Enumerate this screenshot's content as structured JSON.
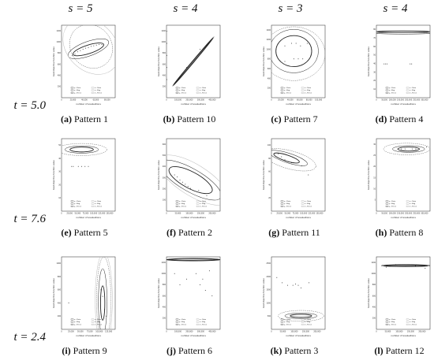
{
  "column_headers": [
    "s = 5",
    "s = 4",
    "s = 3",
    "s = 4"
  ],
  "row_headers": [
    "t = 5.0",
    "t = 7.6",
    "t = 2.4"
  ],
  "colors": {
    "ink": "#222222",
    "grid": "#999999",
    "dashed": "#555555",
    "light": "#bbbbbb"
  },
  "chart_data": [
    {
      "type": "scatter",
      "caption_letter": "(a)",
      "caption_text": "Pattern 1",
      "ylabel": "best objective function value",
      "xlabel": "number of evaluations",
      "xlim": [
        0,
        100000
      ],
      "ylim": [
        0,
        1200
      ],
      "xticks": [
        "0",
        "20,000",
        "40,000",
        "60,000",
        "80,000"
      ],
      "yticks": [
        "200",
        "400",
        "600",
        "800",
        "1000",
        "1200"
      ],
      "legend": [
        "μ - Data",
        "σ - Data",
        "μ - Bag",
        "σ - Bag",
        "μ - Fence",
        "σ - Fence"
      ],
      "points": [
        [
          20000,
          700
        ],
        [
          25000,
          720
        ],
        [
          30000,
          760
        ],
        [
          35000,
          780
        ],
        [
          40000,
          800
        ],
        [
          45000,
          820
        ],
        [
          50000,
          830
        ],
        [
          55000,
          850
        ],
        [
          60000,
          860
        ],
        [
          65000,
          870
        ],
        [
          70000,
          880
        ],
        [
          75000,
          880
        ]
      ],
      "ellipses": [
        {
          "cx": 50000,
          "cy": 800,
          "rx": 30000,
          "ry": 70,
          "rot": -18,
          "style": "bag"
        },
        {
          "cx": 50000,
          "cy": 810,
          "rx": 40000,
          "ry": 120,
          "rot": -20,
          "style": "fence"
        },
        {
          "cx": 55000,
          "cy": 850,
          "rx": 38000,
          "ry": 380,
          "rot": -40,
          "style": "dashed"
        },
        {
          "cx": 55000,
          "cy": 850,
          "rx": 45000,
          "ry": 520,
          "rot": -45,
          "style": "light"
        }
      ]
    },
    {
      "type": "scatter",
      "caption_letter": "(b)",
      "caption_text": "Pattern 10",
      "ylabel": "best objective function value",
      "xlabel": "number of evaluations",
      "xlim": [
        0,
        400000
      ],
      "ylim": [
        0,
        1200
      ],
      "xticks": [
        "0",
        "100,000",
        "200,000",
        "300,000",
        "400,000"
      ],
      "yticks": [
        "200",
        "400",
        "600",
        "800",
        "1000",
        "1200"
      ],
      "legend": [
        "μ - Data",
        "σ - Data",
        "μ - Bag",
        "σ - Bag",
        "μ - Fence",
        "σ - Fence"
      ],
      "points": [
        [
          2000,
          300
        ],
        [
          2000,
          500
        ],
        [
          2000,
          700
        ],
        [
          2000,
          900
        ],
        [
          2000,
          1100
        ],
        [
          150000,
          500
        ],
        [
          250000,
          800
        ]
      ],
      "ellipses": [
        {
          "cx": 200000,
          "cy": 600,
          "rx": 230000,
          "ry": 8,
          "rot": -50,
          "style": "bag"
        },
        {
          "cx": 200000,
          "cy": 600,
          "rx": 240000,
          "ry": 16,
          "rot": -50,
          "style": "fence"
        }
      ]
    },
    {
      "type": "scatter",
      "caption_letter": "(c)",
      "caption_text": "Pattern 7",
      "ylabel": "best objective function value",
      "xlabel": "number of evaluations",
      "xlim": [
        0,
        120000
      ],
      "ylim": [
        0,
        1400
      ],
      "xticks": [
        "0",
        "20,000",
        "40,000",
        "60,000",
        "80,000",
        "100,000"
      ],
      "yticks": [
        "200",
        "400",
        "600",
        "800",
        "1000",
        "1200",
        "1400"
      ],
      "legend": [
        "μ - Data",
        "σ - Data",
        "μ - Bag",
        "σ - Bag",
        "μ - Fence",
        "σ - Fence"
      ],
      "points": [
        [
          30000,
          1000
        ],
        [
          45000,
          1050
        ],
        [
          55000,
          1050
        ],
        [
          65000,
          1000
        ],
        [
          30000,
          700
        ],
        [
          50000,
          750
        ],
        [
          60000,
          750
        ],
        [
          70000,
          750
        ],
        [
          80000,
          1050
        ]
      ],
      "ellipses": [
        {
          "cx": 50000,
          "cy": 900,
          "rx": 40000,
          "ry": 300,
          "rot": 0,
          "style": "bag"
        },
        {
          "cx": 50000,
          "cy": 900,
          "rx": 55000,
          "ry": 420,
          "rot": 0,
          "style": "fence"
        },
        {
          "cx": 50000,
          "cy": 850,
          "rx": 70000,
          "ry": 520,
          "rot": 0,
          "style": "dashed"
        }
      ]
    },
    {
      "type": "scatter",
      "caption_letter": "(d)",
      "caption_text": "Pattern 4",
      "ylabel": "best objective function value",
      "xlabel": "number of evaluations",
      "xlim": [
        0,
        350000
      ],
      "ylim": [
        0,
        90
      ],
      "xticks": [
        "0",
        "50,000",
        "100,000",
        "150,000",
        "200,000",
        "250,000",
        "300,000"
      ],
      "yticks": [
        "10",
        "20",
        "30",
        "40",
        "50",
        "60",
        "70",
        "80"
      ],
      "legend": [
        "μ - Data",
        "σ - Data",
        "μ - Bag",
        "σ - Bag",
        "μ - Fence",
        "σ - Fence"
      ],
      "points": [
        [
          50000,
          42
        ],
        [
          60000,
          42
        ],
        [
          70000,
          42
        ],
        [
          220000,
          42
        ],
        [
          230000,
          42
        ]
      ],
      "ellipses": [
        {
          "cx": 175000,
          "cy": 82,
          "rx": 175000,
          "ry": 1,
          "rot": 0,
          "style": "bag"
        },
        {
          "cx": 175000,
          "cy": 80,
          "rx": 175000,
          "ry": 1,
          "rot": 0,
          "style": "fence"
        }
      ]
    },
    {
      "type": "scatter",
      "caption_letter": "(e)",
      "caption_text": "Pattern 5",
      "ylabel": "best objective function value",
      "xlabel": "number of evaluations",
      "xlim": [
        0,
        160000
      ],
      "ylim": [
        0,
        60
      ],
      "xticks": [
        "0",
        "25,000",
        "50,000",
        "75,000",
        "100,000",
        "125,000",
        "150,000"
      ],
      "yticks": [
        "10",
        "20",
        "30",
        "40",
        "50"
      ],
      "legend": [
        "μ - Data",
        "σ - Data",
        "μ - Bag",
        "σ - Bag",
        "μ - Fence",
        "σ - Fence"
      ],
      "points": [
        [
          30000,
          37
        ],
        [
          35000,
          37
        ],
        [
          50000,
          37
        ],
        [
          60000,
          37
        ],
        [
          70000,
          37
        ],
        [
          80000,
          37
        ]
      ],
      "ellipses": [
        {
          "cx": 60000,
          "cy": 51,
          "rx": 35000,
          "ry": 2,
          "rot": 0,
          "style": "bag"
        },
        {
          "cx": 60000,
          "cy": 51,
          "rx": 50000,
          "ry": 3,
          "rot": 0,
          "style": "fence"
        },
        {
          "cx": 60000,
          "cy": 51,
          "rx": 75000,
          "ry": 5,
          "rot": 0,
          "style": "dashed"
        }
      ]
    },
    {
      "type": "scatter",
      "caption_letter": "(f)",
      "caption_text": "Pattern 2",
      "ylabel": "best objective function value",
      "xlabel": "number of evaluations",
      "xlim": [
        0,
        200000
      ],
      "ylim": [
        0,
        700
      ],
      "xticks": [
        "0",
        "50,000",
        "100,000",
        "150,000",
        "200,000"
      ],
      "yticks": [
        "100",
        "200",
        "300",
        "400",
        "500",
        "600"
      ],
      "legend": [
        "μ - Data",
        "σ - Data",
        "μ - Bag",
        "σ - Bag",
        "μ - Fence",
        "σ - Fence"
      ],
      "points": [
        [
          30000,
          350
        ],
        [
          40000,
          330
        ],
        [
          50000,
          300
        ],
        [
          60000,
          280
        ],
        [
          70000,
          260
        ],
        [
          80000,
          240
        ],
        [
          90000,
          220
        ],
        [
          120000,
          200
        ],
        [
          150000,
          150
        ]
      ],
      "ellipses": [
        {
          "cx": 90000,
          "cy": 300,
          "rx": 90000,
          "ry": 80,
          "rot": 28,
          "style": "bag"
        },
        {
          "cx": 90000,
          "cy": 300,
          "rx": 130000,
          "ry": 110,
          "rot": 30,
          "style": "fence"
        },
        {
          "cx": 100000,
          "cy": 300,
          "rx": 150000,
          "ry": 150,
          "rot": 32,
          "style": "light"
        }
      ]
    },
    {
      "type": "scatter",
      "caption_letter": "(g)",
      "caption_text": "Pattern 11",
      "ylabel": "best objective function value",
      "xlabel": "number of evaluations",
      "xlim": [
        0,
        160000
      ],
      "ylim": [
        0,
        120
      ],
      "xticks": [
        "0",
        "25,000",
        "50,000",
        "75,000",
        "100,000",
        "125,000",
        "150,000"
      ],
      "yticks": [
        "20",
        "40",
        "60",
        "80",
        "100"
      ],
      "legend": [
        "μ - Data",
        "σ - Data",
        "μ - Bag",
        "σ - Bag",
        "μ - Fence",
        "σ - Fence"
      ],
      "points": [
        [
          20000,
          95
        ],
        [
          30000,
          90
        ],
        [
          40000,
          85
        ],
        [
          50000,
          82
        ],
        [
          60000,
          80
        ],
        [
          90000,
          75
        ],
        [
          110000,
          60
        ]
      ],
      "ellipses": [
        {
          "cx": 45000,
          "cy": 88,
          "rx": 40000,
          "ry": 5,
          "rot": 18,
          "style": "bag"
        },
        {
          "cx": 50000,
          "cy": 88,
          "rx": 60000,
          "ry": 8,
          "rot": 18,
          "style": "fence"
        },
        {
          "cx": 55000,
          "cy": 85,
          "rx": 80000,
          "ry": 15,
          "rot": 15,
          "style": "dashed"
        }
      ]
    },
    {
      "type": "scatter",
      "caption_letter": "(h)",
      "caption_text": "Pattern 8",
      "ylabel": "best objective function value",
      "xlabel": "number of evaluations",
      "xlim": [
        0,
        300000
      ],
      "ylim": [
        0,
        35
      ],
      "xticks": [
        "0",
        "50,000",
        "100,000",
        "150,000",
        "200,000",
        "250,000",
        "300,000"
      ],
      "yticks": [
        "5",
        "10",
        "15",
        "20",
        "25",
        "30"
      ],
      "legend": [
        "μ - Data",
        "σ - Data",
        "μ - Bag",
        "σ - Bag",
        "μ - Fence",
        "σ - Fence"
      ],
      "points": [
        [
          120000,
          30
        ],
        [
          140000,
          30
        ],
        [
          160000,
          30
        ],
        [
          180000,
          29
        ],
        [
          200000,
          30
        ],
        [
          220000,
          30
        ],
        [
          240000,
          30
        ],
        [
          280000,
          31
        ]
      ],
      "ellipses": [
        {
          "cx": 180000,
          "cy": 30,
          "rx": 60000,
          "ry": 1,
          "rot": 0,
          "style": "bag"
        },
        {
          "cx": 180000,
          "cy": 30,
          "rx": 90000,
          "ry": 1.6,
          "rot": 0,
          "style": "fence"
        },
        {
          "cx": 170000,
          "cy": 30,
          "rx": 130000,
          "ry": 2.8,
          "rot": 0,
          "style": "dashed"
        }
      ]
    },
    {
      "type": "scatter",
      "caption_letter": "(i)",
      "caption_text": "Pattern 9",
      "ylabel": "best objective function value",
      "xlabel": "number of evaluations",
      "xlim": [
        0,
        150000
      ],
      "ylim": [
        0,
        1100
      ],
      "xticks": [
        "0",
        "25,000",
        "50,000",
        "75,000",
        "100,000",
        "125,000"
      ],
      "yticks": [
        "200",
        "400",
        "600",
        "800",
        "1000"
      ],
      "legend": [
        "μ - Data",
        "σ - Data",
        "μ - Bag",
        "σ - Bag",
        "μ - Fence",
        "σ - Fence"
      ],
      "points": [
        [
          20000,
          400
        ],
        [
          110000,
          600
        ],
        [
          115000,
          500
        ],
        [
          120000,
          300
        ],
        [
          125000,
          200
        ]
      ],
      "ellipses": [
        {
          "cx": 115000,
          "cy": 400,
          "rx": 6000,
          "ry": 260,
          "rot": 0,
          "style": "bag"
        },
        {
          "cx": 115000,
          "cy": 420,
          "rx": 12000,
          "ry": 500,
          "rot": 0,
          "style": "fence"
        },
        {
          "cx": 118000,
          "cy": 450,
          "rx": 20000,
          "ry": 650,
          "rot": 0,
          "style": "dashed"
        },
        {
          "cx": 118000,
          "cy": 450,
          "rx": 24000,
          "ry": 720,
          "rot": 0,
          "style": "light"
        }
      ]
    },
    {
      "type": "scatter",
      "caption_letter": "(j)",
      "caption_text": "Pattern 6",
      "ylabel": "best objective function value",
      "xlabel": "number of evaluations",
      "xlim": [
        0,
        400000
      ],
      "ylim": [
        0,
        1300
      ],
      "xticks": [
        "0",
        "100,000",
        "200,000",
        "300,000",
        "400,000"
      ],
      "yticks": [
        "200",
        "400",
        "600",
        "800",
        "1000",
        "1200"
      ],
      "legend": [
        "μ - Data",
        "σ - Data",
        "μ - Bag",
        "σ - Bag",
        "μ - Fence",
        "σ - Fence"
      ],
      "points": [
        [
          60000,
          1000
        ],
        [
          100000,
          800
        ],
        [
          150000,
          900
        ],
        [
          220000,
          1000
        ],
        [
          250000,
          800
        ],
        [
          270000,
          900
        ],
        [
          290000,
          700
        ],
        [
          320000,
          1050
        ],
        [
          340000,
          600
        ]
      ],
      "ellipses": [
        {
          "cx": 200000,
          "cy": 1250,
          "rx": 200000,
          "ry": 12,
          "rot": 0,
          "style": "bag"
        },
        {
          "cx": 200000,
          "cy": 1250,
          "rx": 200000,
          "ry": 24,
          "rot": 0,
          "style": "fence"
        }
      ]
    },
    {
      "type": "scatter",
      "caption_letter": "(k)",
      "caption_text": "Pattern 3",
      "ylabel": "best objective function value",
      "xlabel": "number of evaluations",
      "xlim": [
        0,
        200000
      ],
      "ylim": [
        0,
        2800
      ],
      "xticks": [
        "0",
        "50,000",
        "100,000",
        "150,000",
        "200,000"
      ],
      "yticks": [
        "500",
        "1000",
        "1500",
        "2000",
        "2500"
      ],
      "legend": [
        "μ - Data",
        "σ - Data",
        "μ - Bag",
        "σ - Bag",
        "μ - Fence",
        "σ - Fence"
      ],
      "points": [
        [
          20000,
          2000
        ],
        [
          40000,
          1800
        ],
        [
          60000,
          1700
        ],
        [
          80000,
          1700
        ],
        [
          90000,
          1750
        ],
        [
          100000,
          1700
        ],
        [
          110000,
          1600
        ],
        [
          140000,
          1800
        ]
      ],
      "ellipses": [
        {
          "cx": 110000,
          "cy": 520,
          "rx": 40000,
          "ry": 60,
          "rot": 0,
          "style": "bag"
        },
        {
          "cx": 110000,
          "cy": 520,
          "rx": 60000,
          "ry": 110,
          "rot": 0,
          "style": "fence"
        },
        {
          "cx": 110000,
          "cy": 520,
          "rx": 85000,
          "ry": 210,
          "rot": 0,
          "style": "dashed"
        }
      ]
    },
    {
      "type": "scatter",
      "caption_letter": "(l)",
      "caption_text": "Pattern 12",
      "ylabel": "best objective function value",
      "xlabel": "number of evaluations",
      "xlim": [
        0,
        220000
      ],
      "ylim": [
        0,
        1400
      ],
      "xticks": [
        "0",
        "50,000",
        "100,000",
        "150,000",
        "200,000"
      ],
      "yticks": [
        "200",
        "400",
        "600",
        "800",
        "1000",
        "1200"
      ],
      "legend": [
        "μ - Data",
        "σ - Data",
        "μ - Bag",
        "σ - Bag",
        "μ - Fence",
        "σ - Fence"
      ],
      "points": [
        [
          40000,
          1200
        ],
        [
          80000,
          1250
        ],
        [
          120000,
          1220
        ],
        [
          160000,
          1230
        ],
        [
          200000,
          1180
        ]
      ],
      "ellipses": [
        {
          "cx": 120000,
          "cy": 1230,
          "rx": 90000,
          "ry": 12,
          "rot": 0,
          "style": "bag"
        },
        {
          "cx": 120000,
          "cy": 1230,
          "rx": 100000,
          "ry": 22,
          "rot": 0,
          "style": "fence"
        }
      ]
    }
  ]
}
